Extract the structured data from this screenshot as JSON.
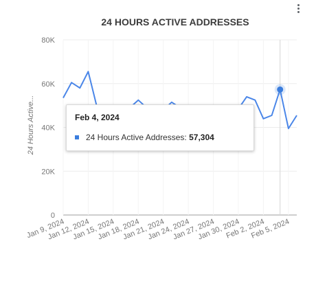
{
  "menu_icon": "more-vert-icon",
  "colors": {
    "line": "#4a86e8",
    "focus_point": "#3b7ddd",
    "grid": "#ececec"
  },
  "chart_data": {
    "type": "line",
    "title": "24 HOURS ACTIVE ADDRESSES",
    "ylabel": "24 Hours Active...",
    "xlabel": "",
    "ylim": [
      0,
      80000
    ],
    "yticks": [
      0,
      20000,
      40000,
      60000,
      80000
    ],
    "ytick_labels": [
      "0",
      "20K",
      "40K",
      "60K",
      "80K"
    ],
    "xtick_labels": [
      "Jan 9, 2024",
      "Jan 12, 2024",
      "Jan 15, 2024",
      "Jan 18, 2024",
      "Jan 21, 2024",
      "Jan 24, 2024",
      "Jan 27, 2024",
      "Jan 30, 2024",
      "Feb 2, 2024",
      "Feb 5, 2024"
    ],
    "grid": true,
    "series": [
      {
        "name": "24 Hours Active Addresses",
        "x": [
          "2024-01-09",
          "2024-01-10",
          "2024-01-11",
          "2024-01-12",
          "2024-01-13",
          "2024-01-14",
          "2024-01-15",
          "2024-01-16",
          "2024-01-17",
          "2024-01-18",
          "2024-01-19",
          "2024-01-20",
          "2024-01-21",
          "2024-01-22",
          "2024-01-23",
          "2024-01-24",
          "2024-01-25",
          "2024-01-26",
          "2024-01-27",
          "2024-01-28",
          "2024-01-29",
          "2024-01-30",
          "2024-01-31",
          "2024-02-01",
          "2024-02-02",
          "2024-02-03",
          "2024-02-04",
          "2024-02-05",
          "2024-02-06"
        ],
        "values": [
          53500,
          60500,
          58000,
          65500,
          50000,
          49000,
          48500,
          49500,
          49000,
          52500,
          49000,
          48500,
          48000,
          51500,
          49000,
          48500,
          49000,
          48000,
          48500,
          48000,
          49000,
          48500,
          54000,
          52500,
          44000,
          45500,
          57304,
          39500,
          45500
        ]
      }
    ],
    "highlight": {
      "date": "Feb 4, 2024",
      "series": "24 Hours Active Addresses",
      "label": "24 Hours Active Addresses:",
      "value_text": "57,304"
    }
  }
}
